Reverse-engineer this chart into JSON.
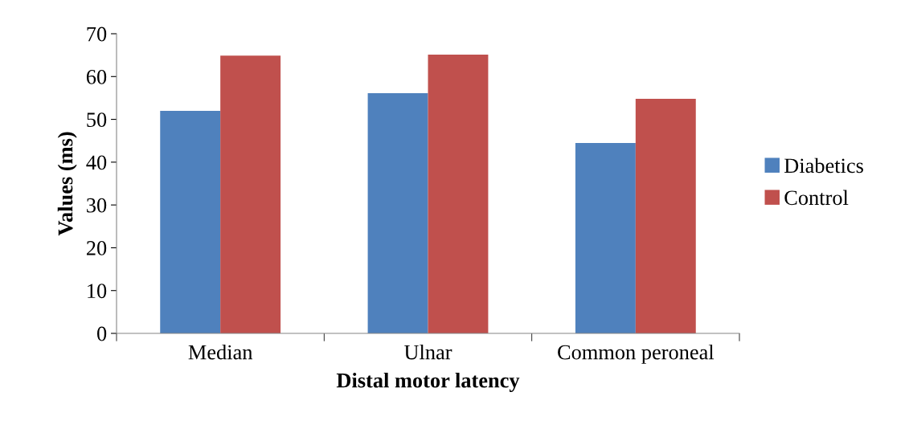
{
  "chart_data": {
    "type": "bar",
    "xlabel": "Distal motor latency",
    "ylabel": "Values (ms)",
    "categories": [
      "Median",
      "Ulnar",
      "Common peroneal"
    ],
    "series": [
      {
        "name": "Diabetics",
        "color": "#4f81bd",
        "values": [
          52.0,
          56.1,
          44.5
        ]
      },
      {
        "name": "Control",
        "color": "#c0504d",
        "values": [
          64.9,
          65.1,
          54.8
        ]
      }
    ],
    "ylim": [
      0,
      70
    ],
    "yticks": [
      0,
      10,
      20,
      30,
      40,
      50,
      60,
      70
    ],
    "grid": false,
    "legend": "right"
  }
}
